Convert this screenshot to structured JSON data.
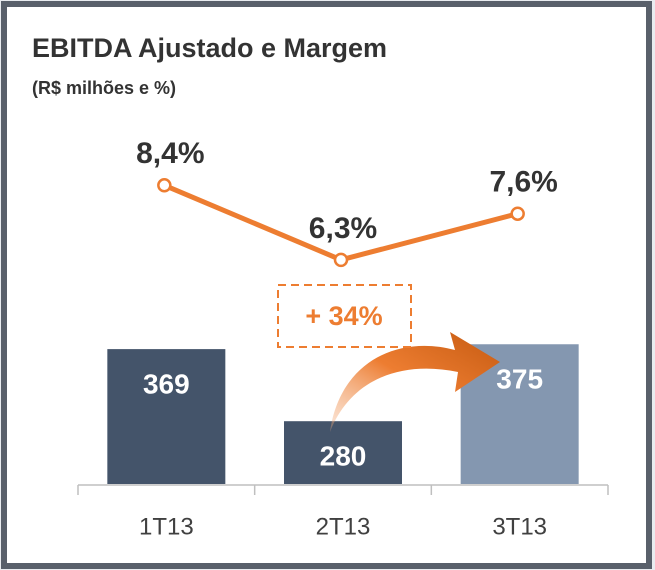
{
  "chart_data": {
    "type": "bar_line",
    "title": "EBITDA Ajustado e Margem",
    "subtitle": "(R$ milhões e %)",
    "categories": [
      "1T13",
      "2T13",
      "3T13"
    ],
    "series": [
      {
        "type": "bar",
        "colors": [
          "#44546a",
          "#44546a",
          "#8497b0"
        ],
        "values": [
          369,
          280,
          375
        ]
      },
      {
        "type": "line",
        "axis": "y2",
        "color": "#ed7d31",
        "values": [
          8.4,
          6.3,
          7.6
        ],
        "value_labels": [
          "8,4%",
          "6,3%",
          "7,6%"
        ]
      }
    ],
    "ylim": [
      200,
      400
    ],
    "y2lim": [
      5,
      9
    ],
    "annotation": "+ 34%"
  }
}
